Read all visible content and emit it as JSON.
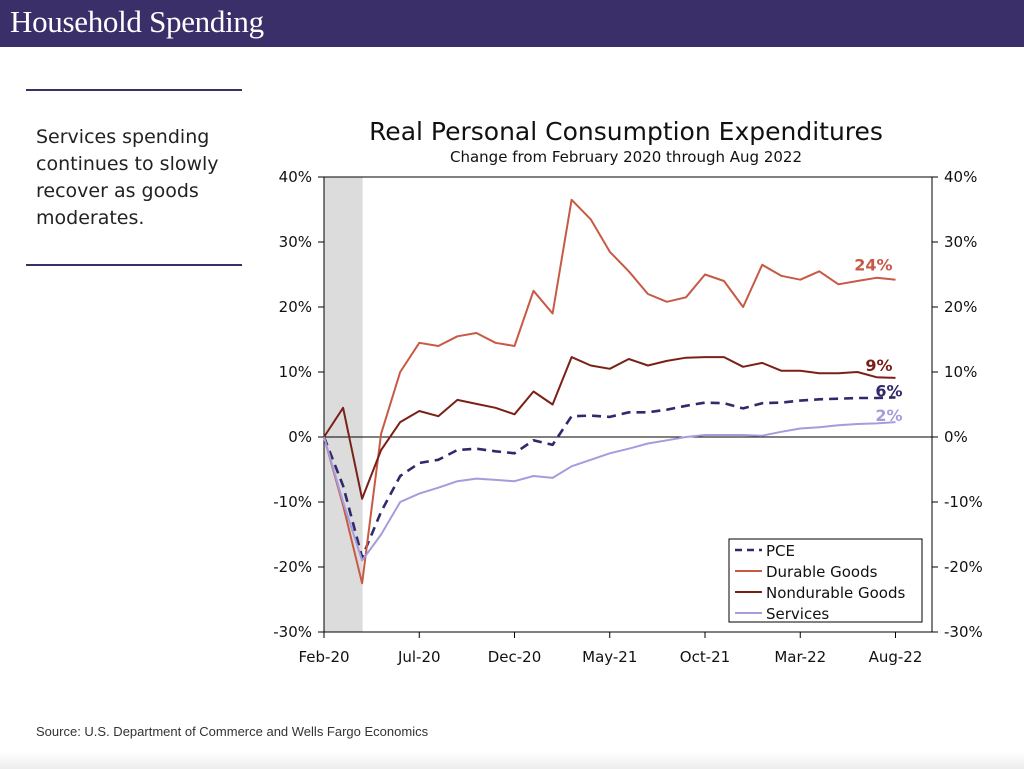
{
  "header": {
    "title": "Household Spending"
  },
  "sidebar": {
    "text": "Services spending continues to slowly recover as goods moderates."
  },
  "footer": {
    "source": "Source: U.S. Department of Commerce and Wells Fargo Economics"
  },
  "colors": {
    "header_bg": "#3b2f69",
    "pce": "#2e2a6b",
    "durable": "#c75a44",
    "nondurable": "#7a2117",
    "services": "#a59cdc",
    "recession_shade": "#dcdcdc"
  },
  "chart_data": {
    "type": "line",
    "title": "Real Personal Consumption Expenditures",
    "subtitle": "Change from February 2020 through Aug 2022",
    "x": [
      "Feb-20",
      "Mar-20",
      "Apr-20",
      "May-20",
      "Jun-20",
      "Jul-20",
      "Aug-20",
      "Sep-20",
      "Oct-20",
      "Nov-20",
      "Dec-20",
      "Jan-21",
      "Feb-21",
      "Mar-21",
      "Apr-21",
      "May-21",
      "Jun-21",
      "Jul-21",
      "Aug-21",
      "Sep-21",
      "Oct-21",
      "Nov-21",
      "Dec-21",
      "Jan-22",
      "Feb-22",
      "Mar-22",
      "Apr-22",
      "May-22",
      "Jun-22",
      "Jul-22",
      "Aug-22"
    ],
    "x_tick_labels": [
      "Feb-20",
      "Jul-20",
      "Dec-20",
      "May-21",
      "Oct-21",
      "Mar-22",
      "Aug-22"
    ],
    "ylim": [
      -30,
      40
    ],
    "y_ticks": [
      -30,
      -20,
      -10,
      0,
      10,
      20,
      30,
      40
    ],
    "y_tick_format": "{v}%",
    "secondary_y_axis": true,
    "shaded_region": {
      "from": "Feb-20",
      "to": "Apr-20"
    },
    "legend_position": "bottom-right",
    "series": [
      {
        "name": "PCE",
        "style": "dashed",
        "color": "#2e2a6b",
        "end_label": "6%",
        "values": [
          0,
          -7.5,
          -18.5,
          -11.5,
          -6.0,
          -4.0,
          -3.5,
          -2.0,
          -1.8,
          -2.2,
          -2.5,
          -0.5,
          -1.2,
          3.2,
          3.3,
          3.1,
          3.8,
          3.8,
          4.2,
          4.8,
          5.3,
          5.2,
          4.4,
          5.2,
          5.3,
          5.6,
          5.8,
          5.9,
          6.0,
          6.0,
          6.1
        ]
      },
      {
        "name": "Durable Goods",
        "style": "solid",
        "color": "#c75a44",
        "end_label": "24%",
        "values": [
          0,
          -10.5,
          -22.5,
          0.5,
          10.0,
          14.5,
          14.0,
          15.5,
          16.0,
          14.5,
          14.0,
          22.5,
          19.0,
          36.5,
          33.5,
          28.5,
          25.5,
          22.0,
          20.8,
          21.5,
          25.0,
          24.0,
          20.0,
          26.5,
          24.8,
          24.2,
          25.5,
          23.5,
          24.0,
          24.5,
          24.2
        ]
      },
      {
        "name": "Nondurable Goods",
        "style": "solid",
        "color": "#7a2117",
        "end_label": "9%",
        "values": [
          0,
          4.5,
          -9.5,
          -2.0,
          2.3,
          4.0,
          3.2,
          5.7,
          5.1,
          4.5,
          3.5,
          7.0,
          5.0,
          12.3,
          11.0,
          10.5,
          12.0,
          11.0,
          11.7,
          12.2,
          12.3,
          12.3,
          10.8,
          11.4,
          10.2,
          10.2,
          9.8,
          9.8,
          10.0,
          9.2,
          9.1
        ]
      },
      {
        "name": "Services",
        "style": "solid",
        "color": "#a59cdc",
        "end_label": "2%",
        "values": [
          0,
          -10.0,
          -19.0,
          -15.0,
          -10.0,
          -8.7,
          -7.8,
          -6.8,
          -6.4,
          -6.6,
          -6.8,
          -6.0,
          -6.3,
          -4.5,
          -3.5,
          -2.5,
          -1.8,
          -1.0,
          -0.5,
          0.0,
          0.3,
          0.3,
          0.3,
          0.2,
          0.8,
          1.3,
          1.5,
          1.8,
          2.0,
          2.1,
          2.3
        ]
      }
    ]
  }
}
